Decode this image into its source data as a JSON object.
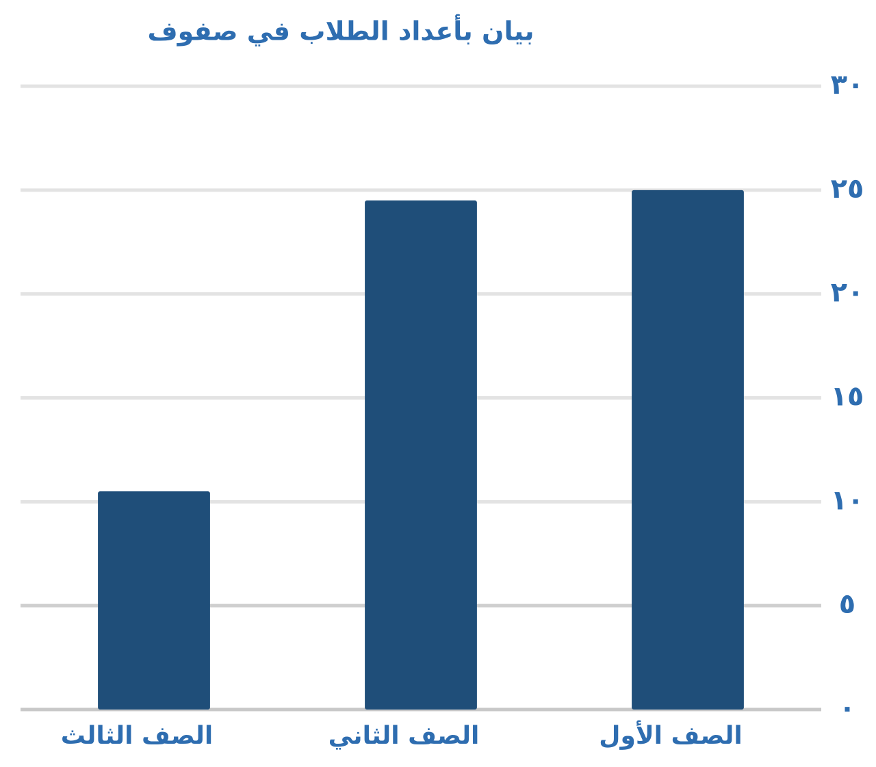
{
  "chart_data": {
    "type": "bar",
    "title": "بيان بأعداد الطلاب في صفوف",
    "categories": [
      "الصف الأول",
      "الصف الثاني",
      "الصف الثالث"
    ],
    "values": [
      25,
      24.5,
      10.5
    ],
    "color": "#1f4e79",
    "ylim": [
      0,
      30
    ],
    "yticks": [
      {
        "value": 0,
        "label": "٠"
      },
      {
        "value": 5,
        "label": "٥"
      },
      {
        "value": 10,
        "label": "١٠"
      },
      {
        "value": 15,
        "label": "١٥"
      },
      {
        "value": 20,
        "label": "٢٠"
      },
      {
        "value": 25,
        "label": "٢٥"
      },
      {
        "value": 30,
        "label": "٣٠"
      }
    ],
    "grid": true,
    "direction": "rtl"
  }
}
